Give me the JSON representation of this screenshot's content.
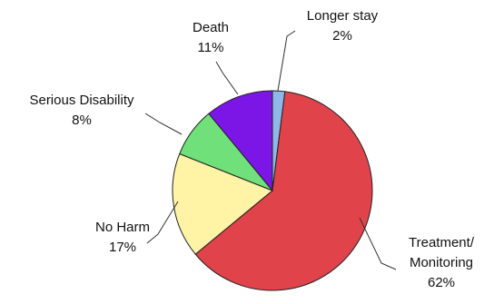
{
  "chart_data": {
    "type": "pie",
    "title": "",
    "slices": [
      {
        "label": "Longer stay",
        "value": 2,
        "display": "2%",
        "color": "#8fb8e8"
      },
      {
        "label": "Treatment/ Monitoring",
        "label_lines": [
          "Treatment/",
          "Monitoring"
        ],
        "value": 62,
        "display": "62%",
        "color": "#e0434a"
      },
      {
        "label": "No Harm",
        "value": 17,
        "display": "17%",
        "color": "#fff3a6"
      },
      {
        "label": "Serious Disability",
        "value": 8,
        "display": "8%",
        "color": "#6fe07a"
      },
      {
        "label": "Death",
        "value": 11,
        "display": "11%",
        "color": "#7b16e6"
      }
    ],
    "start": "12 o'clock",
    "direction": "clockwise",
    "legend": "none"
  }
}
